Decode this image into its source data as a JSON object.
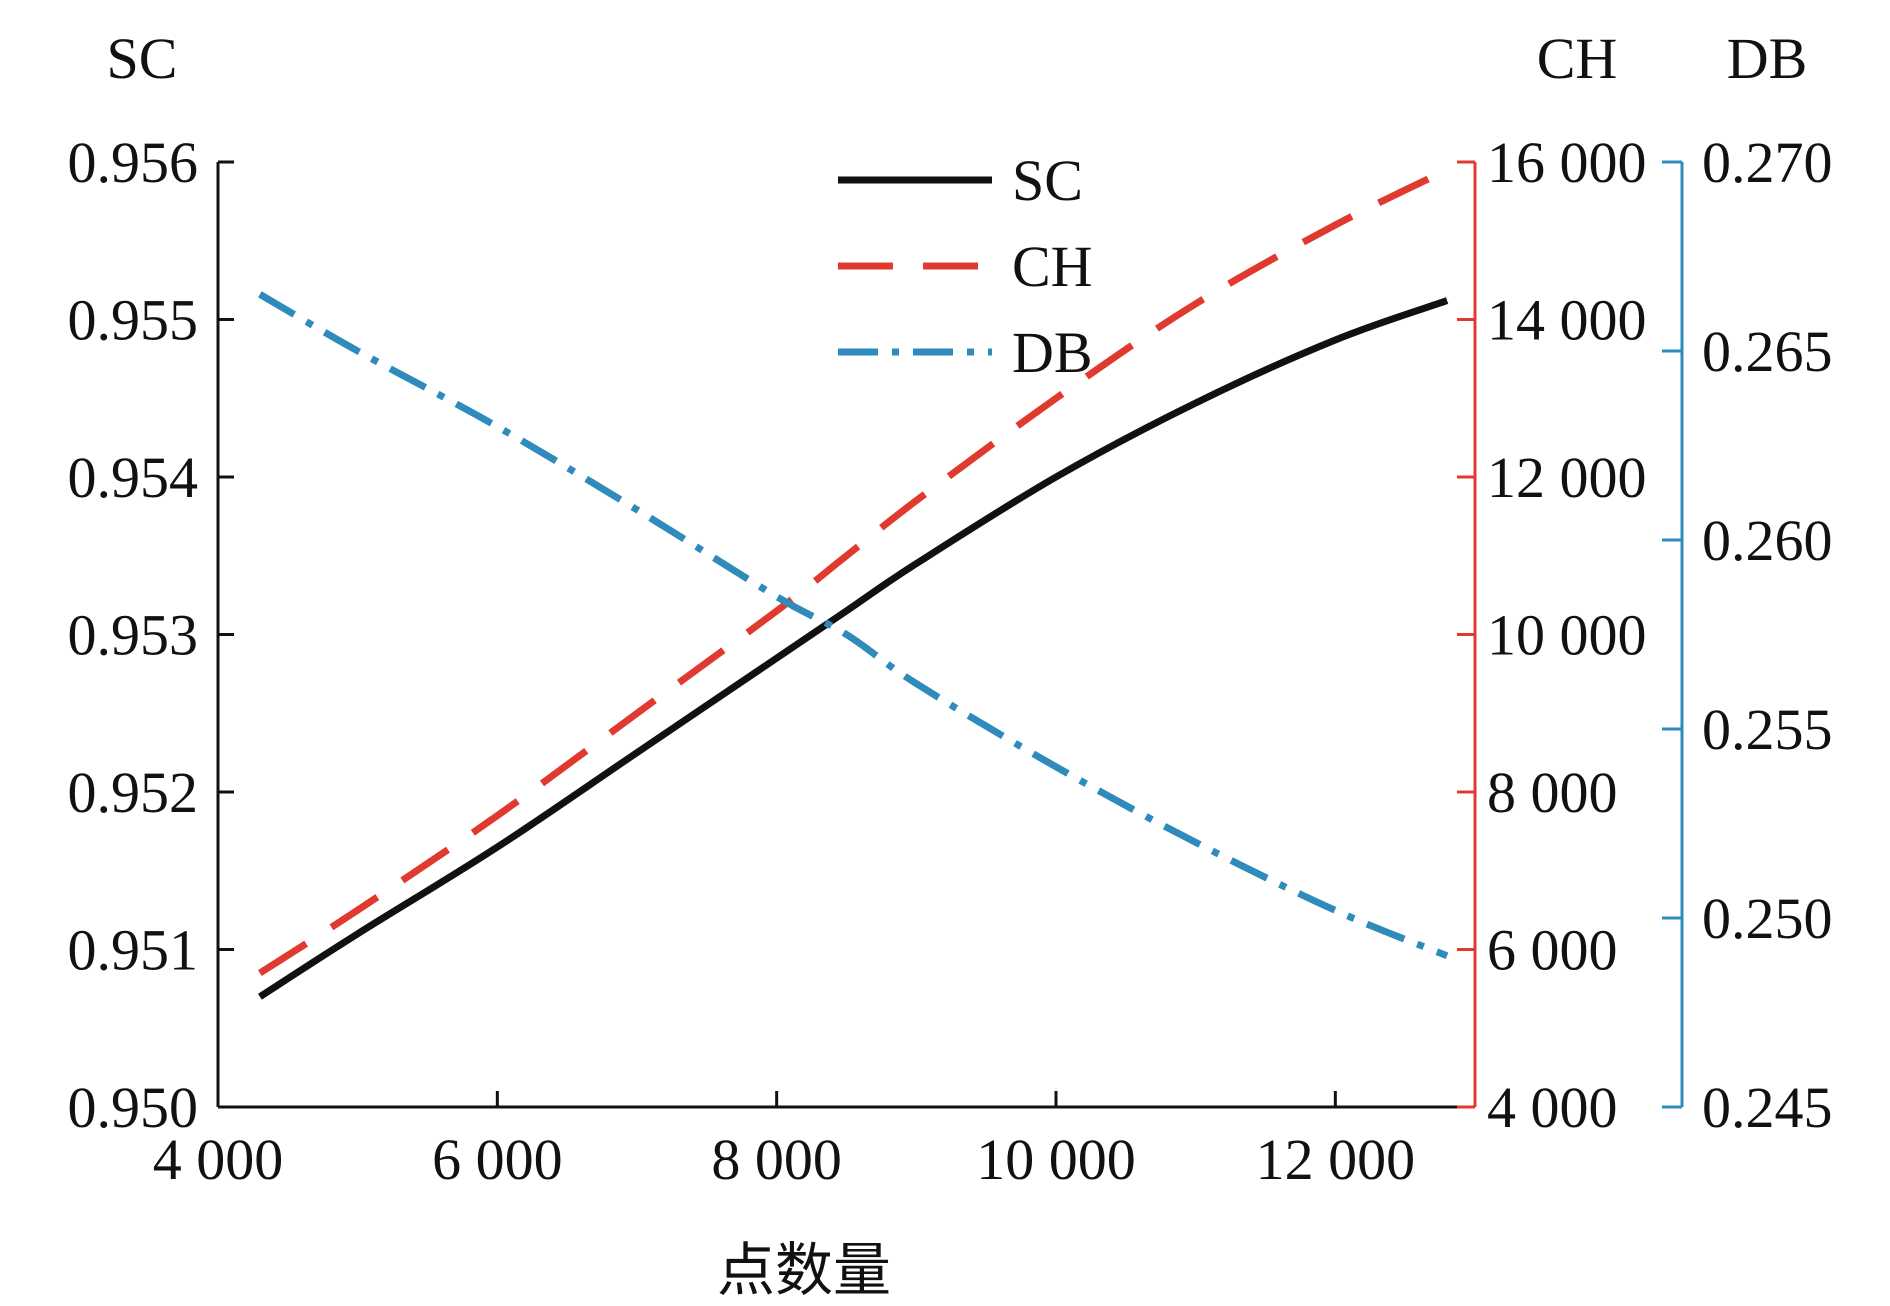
{
  "chart_data": {
    "type": "line",
    "title": "",
    "xlabel": "点数量",
    "xlim": [
      4000,
      13000
    ],
    "x_ticks": [
      4000,
      6000,
      8000,
      10000,
      12000
    ],
    "x_tick_labels": [
      "4 000",
      "6 000",
      "8 000",
      "10 000",
      "12 000"
    ],
    "legend_position": "top-center",
    "colors": {
      "SC": "#111111",
      "CH": "#e03a30",
      "DB": "#2f8bbb"
    },
    "axes": [
      {
        "id": "SC",
        "title": "SC",
        "side": "left",
        "ylim": [
          0.95,
          0.956
        ],
        "ticks": [
          0.95,
          0.951,
          0.952,
          0.953,
          0.954,
          0.955,
          0.956
        ],
        "tick_labels": [
          "0.950",
          "0.951",
          "0.952",
          "0.953",
          "0.954",
          "0.955",
          "0.956"
        ]
      },
      {
        "id": "CH",
        "title": "CH",
        "side": "right",
        "ylim": [
          4000,
          16000
        ],
        "ticks": [
          4000,
          6000,
          8000,
          10000,
          12000,
          14000,
          16000
        ],
        "tick_labels": [
          "4 000",
          "6 000",
          "8 000",
          "10 000",
          "12 000",
          "14 000",
          "16 000"
        ]
      },
      {
        "id": "DB",
        "title": "DB",
        "side": "right-outer",
        "ylim": [
          0.245,
          0.27
        ],
        "ticks": [
          0.245,
          0.25,
          0.255,
          0.26,
          0.265,
          0.27
        ],
        "tick_labels": [
          "0.245",
          "0.250",
          "0.255",
          "0.260",
          "0.265",
          "0.270"
        ]
      }
    ],
    "x": [
      4300,
      5000,
      6000,
      7000,
      8000,
      8500,
      9000,
      10000,
      11000,
      12000,
      12800
    ],
    "series": [
      {
        "name": "SC",
        "axis": "SC",
        "style": "solid",
        "values": [
          0.9507,
          0.9511,
          0.95165,
          0.95225,
          0.95285,
          0.95315,
          0.95345,
          0.954,
          0.95447,
          0.95487,
          0.95512
        ]
      },
      {
        "name": "CH",
        "axis": "CH",
        "style": "dashed",
        "values": [
          5700,
          6500,
          7700,
          9000,
          10300,
          11000,
          11700,
          13000,
          14200,
          15200,
          15900
        ]
      },
      {
        "name": "DB",
        "axis": "DB",
        "style": "dash-dot",
        "values": [
          0.2665,
          0.265,
          0.263,
          0.2608,
          0.2585,
          0.2575,
          0.2562,
          0.254,
          0.252,
          0.2502,
          0.249
        ]
      }
    ]
  }
}
